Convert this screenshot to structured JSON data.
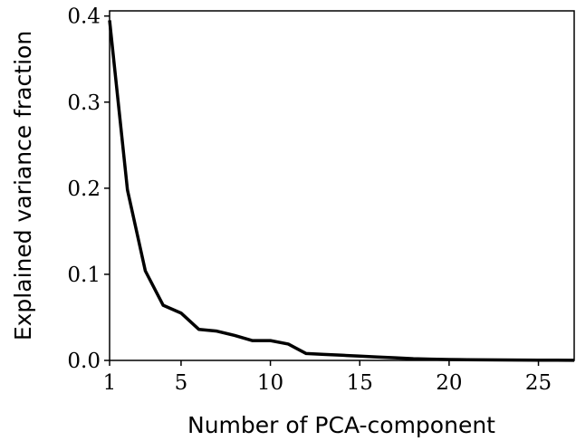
{
  "chart_data": {
    "type": "line",
    "xlabel": "Number of PCA-component",
    "ylabel": "Explained variance fraction",
    "x": [
      1,
      2,
      3,
      4,
      5,
      6,
      7,
      8,
      9,
      10,
      11,
      12,
      13,
      14,
      15,
      16,
      17,
      18,
      19,
      20,
      21,
      22,
      23,
      24,
      25,
      26,
      27
    ],
    "series": [
      {
        "color": "#000000",
        "values": [
          0.395,
          0.198,
          0.104,
          0.064,
          0.055,
          0.036,
          0.034,
          0.029,
          0.023,
          0.023,
          0.019,
          0.008,
          0.007,
          0.006,
          0.005,
          0.004,
          0.003,
          0.002,
          0.0015,
          0.001,
          0.0008,
          0.0006,
          0.0005,
          0.0004,
          0.0003,
          0.0002,
          0.0001
        ]
      }
    ],
    "xlim": [
      1,
      27
    ],
    "ylim": [
      0,
      0.406
    ],
    "xticks": [
      1,
      5,
      10,
      15,
      20,
      25
    ],
    "yticks": [
      {
        "value": 0,
        "label": "0.0"
      },
      0.1,
      0.2,
      0.3,
      0.4
    ]
  }
}
